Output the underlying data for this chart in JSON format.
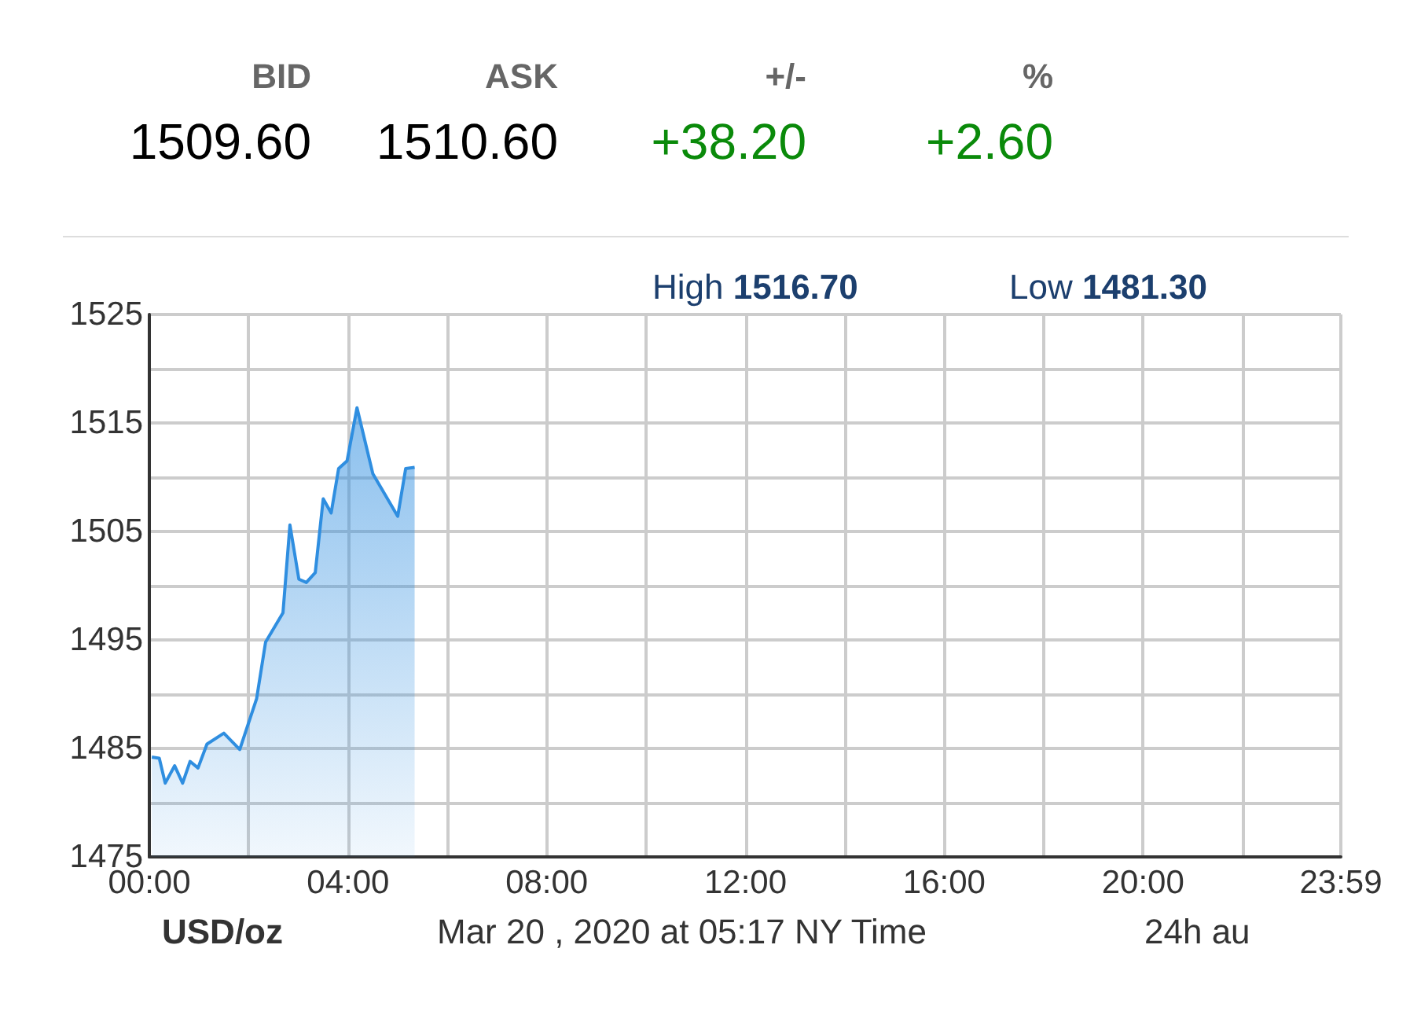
{
  "chart_data": [
    {
      "type": "other",
      "annotations": [
        "BID",
        "ASK",
        "+/-",
        "%",
        "1509.60",
        "1510.60",
        "+38.20",
        "+2.60"
      ]
    },
    {
      "type": "area",
      "marker": "none",
      "grid": true,
      "annotations": [
        "High 1516.70",
        "Low 1481.30",
        "USD/oz",
        "Mar 20 , 2020 at 05:17 NY Time",
        "24h au"
      ],
      "xlim": [
        0,
        23.983
      ],
      "xticks": [
        {
          "value": 0,
          "label": "00:00"
        },
        {
          "value": 2,
          "label": null
        },
        {
          "value": 4,
          "label": "04:00"
        },
        {
          "value": 6,
          "label": null
        },
        {
          "value": 8,
          "label": "08:00"
        },
        {
          "value": 10,
          "label": null
        },
        {
          "value": 12,
          "label": "12:00"
        },
        {
          "value": 14,
          "label": null
        },
        {
          "value": 16,
          "label": "16:00"
        },
        {
          "value": 18,
          "label": null
        },
        {
          "value": 20,
          "label": "20:00"
        },
        {
          "value": 22,
          "label": null
        },
        {
          "value": 23.983,
          "label": "23:59"
        }
      ],
      "ylim": [
        1475,
        1525
      ],
      "yticks": [
        1475,
        {
          "value": 1480,
          "label": null
        },
        1485,
        {
          "value": 1490,
          "label": null
        },
        1495,
        {
          "value": 1500,
          "label": null
        },
        1505,
        {
          "value": 1510,
          "label": null
        },
        1515,
        {
          "value": 1520,
          "label": null
        },
        1525
      ],
      "series": [
        {
          "color": "#2f8ee0",
          "x": [
            0.05,
            0.2,
            0.32,
            0.51,
            0.67,
            0.82,
            0.98,
            1.16,
            1.5,
            1.82,
            2.16,
            2.34,
            2.69,
            2.83,
            3.01,
            3.16,
            3.34,
            3.5,
            3.66,
            3.81,
            3.98,
            4.18,
            4.5,
            5.0,
            5.16,
            5.34
          ],
          "values": [
            1484.2,
            1484.1,
            1481.8,
            1483.4,
            1481.8,
            1483.8,
            1483.2,
            1485.4,
            1486.4,
            1484.9,
            1489.6,
            1494.8,
            1497.5,
            1505.6,
            1500.6,
            1500.3,
            1501.2,
            1508.0,
            1506.7,
            1510.8,
            1511.5,
            1516.4,
            1510.3,
            1506.4,
            1510.8,
            1510.9
          ]
        }
      ]
    }
  ]
}
